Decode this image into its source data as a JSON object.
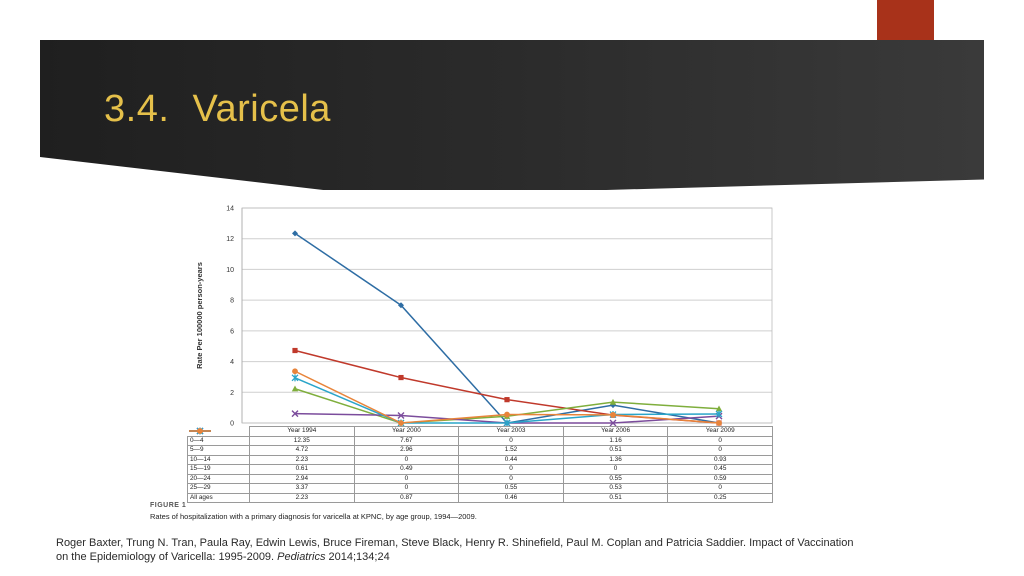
{
  "slide": {
    "title": "3.4.\tVaricela",
    "accent_color": "#a8321a",
    "title_color": "#e5c04a"
  },
  "figure": {
    "label": "FIGURE 1",
    "caption": "Rates of hospitalization with a primary diagnosis for varicella at KPNC, by age group, 1994—2009."
  },
  "chart_data": {
    "type": "line",
    "ylabel": "Rate Per 100000 person-years",
    "xlabel": "",
    "ylim": [
      0,
      14
    ],
    "yticks": [
      "0",
      "2",
      "4",
      "6",
      "8",
      "10",
      "12",
      "14"
    ],
    "grid": true,
    "categories": [
      "Year 1994",
      "Year 2000",
      "Year 2003",
      "Year 2006",
      "Year 2009"
    ],
    "series": [
      {
        "name": "0—4",
        "color": "#2e6da4",
        "marker": "diamond",
        "values": [
          12.35,
          7.67,
          0,
          1.16,
          0
        ],
        "labels": [
          "12.35",
          "7.67",
          "0",
          "1.16",
          "0"
        ]
      },
      {
        "name": "5—9",
        "color": "#c0392b",
        "marker": "square",
        "values": [
          4.72,
          2.96,
          1.52,
          0.51,
          0
        ],
        "labels": [
          "4.72",
          "2.96",
          "1.52",
          "0.51",
          "0"
        ]
      },
      {
        "name": "10—14",
        "color": "#7fae3c",
        "marker": "triangle",
        "values": [
          2.23,
          0,
          0.44,
          1.36,
          0.93
        ],
        "labels": [
          "2.23",
          "0",
          "0.44",
          "1.36",
          "0.93"
        ]
      },
      {
        "name": "15—19",
        "color": "#7b4c9c",
        "marker": "x",
        "values": [
          0.61,
          0.49,
          0,
          0,
          0.45
        ],
        "labels": [
          "0.61",
          "0.49",
          "0",
          "0",
          "0.45"
        ]
      },
      {
        "name": "20—24",
        "color": "#2aa5c9",
        "marker": "asterisk",
        "values": [
          2.94,
          0,
          0,
          0.55,
          0.59
        ],
        "labels": [
          "2.94",
          "0",
          "0",
          "0.55",
          "0.59"
        ]
      },
      {
        "name": "25—29",
        "color": "#e8843a",
        "marker": "circle",
        "values": [
          3.37,
          0,
          0.55,
          0.53,
          0
        ],
        "labels": [
          "3.37",
          "0",
          "0.55",
          "0.53",
          "0"
        ]
      }
    ],
    "summary_row": {
      "name": "All ages",
      "labels": [
        "2.23",
        "0.87",
        "0.46",
        "0.51",
        "0.25"
      ]
    }
  },
  "citation": {
    "text_before": "Roger Baxter, Trung N. Tran, Paula Ray, Edwin Lewis, Bruce Fireman, Steve Black, Henry R. Shinefield, Paul M. Coplan and Patricia Saddier. Impact of Vaccination on the Epidemiology of Varicella: 1995-2009. ",
    "journal": "Pediatrics",
    "text_after": " 2014;134;24"
  }
}
